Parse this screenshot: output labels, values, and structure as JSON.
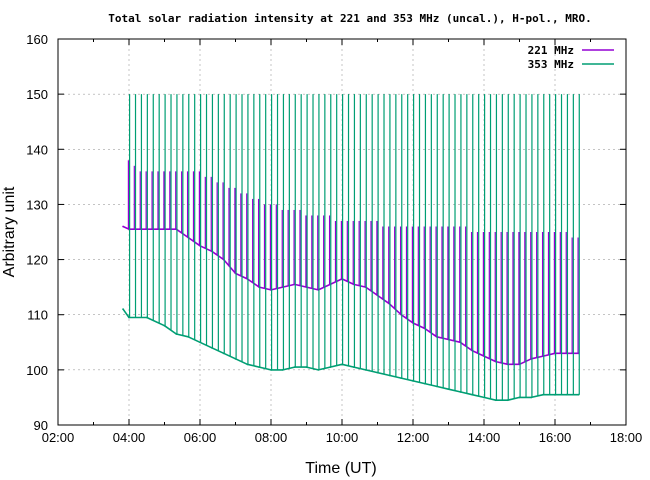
{
  "chart_data": {
    "type": "line",
    "title": "Total solar radiation intensity at 221 and 353 MHz (uncal.), H-pol., MRO.",
    "xlabel": "Time (UT)",
    "ylabel": "Arbitrary unit",
    "xlim": [
      "02:00",
      "18:00"
    ],
    "ylim": [
      90,
      160
    ],
    "xticks": [
      "02:00",
      "04:00",
      "06:00",
      "08:00",
      "10:00",
      "12:00",
      "14:00",
      "16:00",
      "18:00"
    ],
    "yticks": [
      90,
      100,
      110,
      120,
      130,
      140,
      150,
      160
    ],
    "grid": true,
    "legend_position": "top-right",
    "series": [
      {
        "name": "221 MHz",
        "color": "#9400d3",
        "x": [
          "03:50",
          "04:00",
          "04:30",
          "05:00",
          "05:20",
          "05:40",
          "06:00",
          "06:20",
          "06:40",
          "07:00",
          "07:20",
          "07:40",
          "08:00",
          "08:20",
          "08:40",
          "09:00",
          "09:20",
          "09:40",
          "10:00",
          "10:20",
          "10:40",
          "11:00",
          "11:20",
          "11:40",
          "12:00",
          "12:20",
          "12:40",
          "13:00",
          "13:20",
          "13:40",
          "14:00",
          "14:20",
          "14:40",
          "15:00",
          "15:20",
          "15:40",
          "16:00",
          "16:20",
          "16:40"
        ],
        "values": [
          126,
          125.5,
          125.5,
          125.5,
          125.5,
          124,
          122.5,
          121.5,
          120,
          117.5,
          116.5,
          115,
          114.5,
          115,
          115.5,
          115,
          114.5,
          115.5,
          116.5,
          115.5,
          115,
          113.5,
          112,
          110,
          108.5,
          107.5,
          106,
          105.5,
          105,
          103.5,
          102.5,
          101.5,
          101,
          101,
          102,
          102.5,
          103,
          103,
          103
        ],
        "bursts": {
          "x": [
            "04:00",
            "04:10",
            "04:20",
            "04:30",
            "04:40",
            "04:50",
            "05:00",
            "05:10",
            "05:20",
            "05:30",
            "05:40",
            "05:50",
            "06:00",
            "06:10",
            "06:20",
            "06:30",
            "06:40",
            "06:50",
            "07:00",
            "07:10",
            "07:20",
            "07:30",
            "07:40",
            "07:50",
            "08:00",
            "08:10",
            "08:20",
            "08:30",
            "08:40",
            "08:50",
            "09:00",
            "09:10",
            "09:20",
            "09:30",
            "09:40",
            "09:50",
            "10:00",
            "10:10",
            "10:20",
            "10:30",
            "10:40",
            "10:50",
            "11:00",
            "11:10",
            "11:20",
            "11:30",
            "11:40",
            "11:50",
            "12:00",
            "12:10",
            "12:20",
            "12:30",
            "12:40",
            "12:50",
            "13:00",
            "13:10",
            "13:20",
            "13:30",
            "13:40",
            "13:50",
            "14:00",
            "14:10",
            "14:20",
            "14:30",
            "14:40",
            "14:50",
            "15:00",
            "15:10",
            "15:20",
            "15:30",
            "15:40",
            "15:50",
            "16:00",
            "16:10",
            "16:20",
            "16:30",
            "16:40"
          ],
          "peak": [
            138,
            137,
            136,
            136,
            136,
            136,
            136,
            136,
            136,
            136,
            136,
            136,
            136,
            135,
            135,
            134,
            134,
            133,
            133,
            132,
            132,
            131,
            131,
            130,
            130,
            130,
            129,
            129,
            129,
            129,
            128,
            128,
            128,
            128,
            128,
            127,
            127,
            127,
            127,
            127,
            127,
            127,
            127,
            126,
            126,
            126,
            126,
            126,
            126,
            126,
            126,
            126,
            126,
            126,
            126,
            126,
            126,
            126,
            125,
            125,
            125,
            125,
            125,
            125,
            125,
            125,
            125,
            125,
            125,
            125,
            125,
            125,
            125,
            125,
            125,
            124,
            124
          ]
        }
      },
      {
        "name": "353 MHz",
        "color": "#009e73",
        "x": [
          "03:50",
          "04:00",
          "04:30",
          "05:00",
          "05:20",
          "05:40",
          "06:00",
          "06:20",
          "06:40",
          "07:00",
          "07:20",
          "07:40",
          "08:00",
          "08:20",
          "08:40",
          "09:00",
          "09:20",
          "09:40",
          "10:00",
          "10:20",
          "10:40",
          "11:00",
          "11:20",
          "11:40",
          "12:00",
          "12:20",
          "12:40",
          "13:00",
          "13:20",
          "13:40",
          "14:00",
          "14:20",
          "14:40",
          "15:00",
          "15:20",
          "15:40",
          "16:00",
          "16:20",
          "16:40"
        ],
        "values": [
          111,
          109.5,
          109.5,
          108,
          106.5,
          106,
          105,
          104,
          103,
          102,
          101,
          100.5,
          100,
          100,
          100.5,
          100.5,
          100,
          100.5,
          101,
          100.5,
          100,
          99.5,
          99,
          98.5,
          98,
          97.5,
          97,
          96.5,
          96,
          95.5,
          95,
          94.5,
          94.5,
          95,
          95,
          95.5,
          95.5,
          95.5,
          95.5
        ],
        "bursts": {
          "x": [
            "04:00",
            "04:10",
            "04:20",
            "04:30",
            "04:40",
            "04:50",
            "05:00",
            "05:10",
            "05:20",
            "05:30",
            "05:40",
            "05:50",
            "06:00",
            "06:10",
            "06:20",
            "06:30",
            "06:40",
            "06:50",
            "07:00",
            "07:10",
            "07:20",
            "07:30",
            "07:40",
            "07:50",
            "08:00",
            "08:10",
            "08:20",
            "08:30",
            "08:40",
            "08:50",
            "09:00",
            "09:10",
            "09:20",
            "09:30",
            "09:40",
            "09:50",
            "10:00",
            "10:10",
            "10:20",
            "10:30",
            "10:40",
            "10:50",
            "11:00",
            "11:10",
            "11:20",
            "11:30",
            "11:40",
            "11:50",
            "12:00",
            "12:10",
            "12:20",
            "12:30",
            "12:40",
            "12:50",
            "13:00",
            "13:10",
            "13:20",
            "13:30",
            "13:40",
            "13:50",
            "14:00",
            "14:10",
            "14:20",
            "14:30",
            "14:40",
            "14:50",
            "15:00",
            "15:10",
            "15:20",
            "15:30",
            "15:40",
            "15:50",
            "16:00",
            "16:10",
            "16:20",
            "16:30",
            "16:40"
          ],
          "peak": [
            150,
            150,
            150,
            150,
            150,
            150,
            150,
            150,
            150,
            150,
            150,
            150,
            150,
            150,
            150,
            150,
            150,
            150,
            150,
            150,
            150,
            150,
            150,
            150,
            150,
            150,
            150,
            150,
            150,
            150,
            150,
            150,
            150,
            150,
            150,
            150,
            150,
            150,
            150,
            150,
            150,
            150,
            150,
            150,
            150,
            150,
            150,
            150,
            150,
            150,
            150,
            150,
            150,
            150,
            150,
            150,
            150,
            150,
            150,
            150,
            150,
            150,
            150,
            150,
            150,
            150,
            150,
            150,
            150,
            150,
            150,
            150,
            150,
            150,
            150,
            150,
            150
          ]
        }
      }
    ]
  }
}
